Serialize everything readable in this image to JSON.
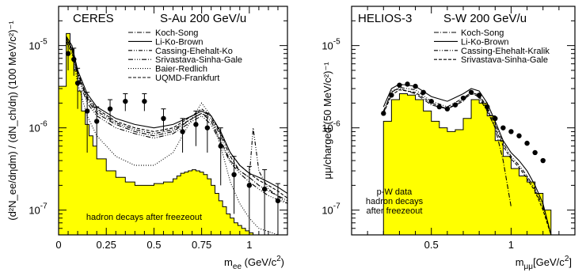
{
  "chart_data": [
    {
      "type": "line",
      "title": "CERES",
      "subtitle": "S-Au 200 GeV/u",
      "xlabel": {
        "main": "m",
        "sub": "ee",
        "rest": " (GeV/c",
        "sup": "2",
        "end": ")"
      },
      "ylabel": "(d²N_ee/dηdm) / (dN_ch/dη) (100 MeV/c²)⁻¹",
      "xlim": [
        0,
        1.2
      ],
      "ylim": [
        5e-08,
        3e-05
      ],
      "yscale": "log",
      "xticks": [
        0,
        0.25,
        0.5,
        0.75,
        1
      ],
      "xticklabels": [
        "0",
        "0.25",
        "0.5",
        "0.75",
        "1"
      ],
      "yticklabels": [
        {
          "base": "10",
          "exp": "-7",
          "value": 1e-07
        },
        {
          "base": "10",
          "exp": "-6",
          "value": 1e-06
        },
        {
          "base": "10",
          "exp": "-5",
          "value": 1e-05
        }
      ],
      "legend": [
        {
          "name": "Koch-Song",
          "dash": "6,2,1,2"
        },
        {
          "name": "Li-Ko-Brown",
          "dash": ""
        },
        {
          "name": "Cassing-Ehehalt-Ko",
          "dash": "5,2,1,2,1,2"
        },
        {
          "name": "Srivastava-Sinha-Gale",
          "dash": "6,2,1,2,1,2,1,2"
        },
        {
          "name": "Baier-Redlich",
          "dash": "1,2"
        },
        {
          "name": "UQMD-Frankfurt",
          "dash": "4,2"
        }
      ],
      "annotation": "hadron decays after freezeout",
      "fill_color": "#ffff00",
      "hadron_histogram": {
        "edges": [
          0,
          0.04,
          0.06,
          0.08,
          0.1,
          0.12,
          0.14,
          0.16,
          0.18,
          0.2,
          0.25,
          0.3,
          0.35,
          0.4,
          0.45,
          0.5,
          0.55,
          0.6,
          0.62,
          0.64,
          0.66,
          0.68,
          0.7,
          0.72,
          0.74,
          0.76,
          0.78,
          0.8,
          0.82,
          0.84,
          0.86,
          0.88,
          0.9,
          0.92,
          0.94,
          0.96,
          0.98,
          1.0,
          1.02,
          1.04,
          1.2
        ],
        "values": [
          3.2e-06,
          1.4e-05,
          9e-06,
          5e-06,
          2.8e-06,
          1.6e-06,
          1.1e-06,
          8e-07,
          6e-07,
          4.2e-07,
          3e-07,
          2.5e-07,
          2.2e-07,
          2e-07,
          2e-07,
          2.1e-07,
          2.2e-07,
          2.4e-07,
          2.6e-07,
          2.8e-07,
          2.9e-07,
          3e-07,
          3.1e-07,
          3e-07,
          2.9e-07,
          2.7e-07,
          2.4e-07,
          2e-07,
          1.6e-07,
          1.3e-07,
          1.1e-07,
          9e-08,
          8e-08,
          7e-08,
          6.5e-08,
          6e-08,
          5.6e-08,
          5.3e-08,
          5e-08,
          5e-08
        ]
      },
      "data_points": {
        "x": [
          0.05,
          0.08,
          0.1,
          0.15,
          0.2,
          0.27,
          0.35,
          0.45,
          0.55,
          0.65,
          0.72,
          0.78,
          0.85,
          0.92,
          1.0,
          1.08,
          1.15
        ],
        "y": [
          8e-06,
          6.8e-06,
          3.5e-06,
          1.6e-06,
          1.2e-06,
          1.7e-06,
          2.1e-06,
          2.1e-06,
          1.3e-06,
          9e-07,
          1.1e-06,
          1e-06,
          6e-07,
          2.7e-07,
          2e-07,
          1.8e-07,
          1.3e-07
        ],
        "yerr_low": [
          3e-06,
          2.5e-06,
          1.8e-06,
          1.1e-06,
          6e-07,
          5e-07,
          5e-07,
          5e-07,
          4e-07,
          4e-07,
          5e-07,
          5e-07,
          4e-07,
          1.8e-07,
          1.4e-07,
          1.3e-07,
          8e-08
        ],
        "yerr_high": [
          3e-06,
          2.5e-06,
          1.8e-06,
          1.1e-06,
          6e-07,
          5e-07,
          5e-07,
          5e-07,
          4e-07,
          4e-07,
          5e-07,
          5e-07,
          4e-07,
          1.8e-07,
          1.4e-07,
          1.3e-07,
          8e-08
        ]
      },
      "series": [
        {
          "name": "Koch-Song",
          "x": [
            0.04,
            0.07,
            0.1,
            0.15,
            0.2,
            0.3,
            0.4,
            0.5,
            0.6,
            0.7,
            0.75,
            0.8,
            0.85,
            0.9,
            0.95,
            1.0,
            1.05,
            1.1,
            1.15,
            1.2
          ],
          "y": [
            1.2e-05,
            9e-06,
            4.5e-06,
            2.2e-06,
            1.5e-06,
            1.1e-06,
            9e-07,
            8e-07,
            9e-07,
            1.3e-06,
            1.5e-06,
            1.2e-06,
            7e-07,
            4e-07,
            3e-07,
            2.5e-07,
            2e-07,
            1.7e-07,
            1.5e-07,
            1.3e-07
          ]
        },
        {
          "name": "Li-Ko-Brown",
          "x": [
            0.04,
            0.07,
            0.1,
            0.15,
            0.2,
            0.3,
            0.4,
            0.5,
            0.6,
            0.7,
            0.75,
            0.8,
            0.85,
            0.9,
            0.95,
            1.0,
            1.05,
            1.1,
            1.15,
            1.2
          ],
          "y": [
            1.3e-05,
            1e-05,
            5e-06,
            2.6e-06,
            1.8e-06,
            1.3e-06,
            1.1e-06,
            1e-06,
            1.1e-06,
            1.4e-06,
            1.6e-06,
            1.4e-06,
            9e-07,
            5e-07,
            3.5e-07,
            2.8e-07,
            2.5e-07,
            2.2e-07,
            1.9e-07,
            1.6e-07
          ]
        },
        {
          "name": "Cassing-Ehehalt-Ko",
          "x": [
            0.04,
            0.07,
            0.1,
            0.15,
            0.2,
            0.3,
            0.4,
            0.5,
            0.6,
            0.7,
            0.75,
            0.8,
            0.85,
            0.9,
            0.95,
            1.0,
            1.02,
            1.05,
            1.1,
            1.2
          ],
          "y": [
            1.2e-05,
            9.5e-06,
            4.8e-06,
            2.3e-06,
            1.6e-06,
            1.15e-06,
            9.5e-07,
            8.5e-07,
            9.5e-07,
            1.3e-06,
            1.5e-06,
            1.3e-06,
            8e-07,
            4.5e-07,
            3e-07,
            2.5e-07,
            1e-06,
            3e-07,
            1.8e-07,
            1.2e-07
          ]
        },
        {
          "name": "Srivastava-Sinha-Gale",
          "x": [
            0.04,
            0.07,
            0.1,
            0.15,
            0.2,
            0.3,
            0.4,
            0.5,
            0.6,
            0.7,
            0.75,
            0.8,
            0.85,
            0.9,
            0.95,
            1.0,
            1.05,
            1.1,
            1.2
          ],
          "y": [
            1.1e-05,
            8.5e-06,
            4.2e-06,
            2e-06,
            1.4e-06,
            1e-06,
            8.5e-07,
            7.5e-07,
            8.5e-07,
            1.2e-06,
            1.4e-06,
            1.1e-06,
            6.5e-07,
            3.8e-07,
            2.8e-07,
            2.2e-07,
            1.8e-07,
            1.5e-07,
            1.2e-07
          ]
        },
        {
          "name": "Baier-Redlich",
          "x": [
            0.04,
            0.07,
            0.1,
            0.15,
            0.2,
            0.3,
            0.4,
            0.5,
            0.6,
            0.7,
            0.75,
            0.8,
            0.85,
            0.9,
            0.95,
            1.0,
            1.05,
            1.1,
            1.15
          ],
          "y": [
            1.1e-05,
            8e-06,
            3.5e-06,
            1.4e-06,
            8e-07,
            4.5e-07,
            3.5e-07,
            3.5e-07,
            5e-07,
            1.3e-06,
            2e-06,
            1.4e-06,
            6e-07,
            2.2e-07,
            1.2e-07,
            8e-08,
            6e-08,
            5.5e-08,
            5e-08
          ]
        },
        {
          "name": "UQMD-Frankfurt",
          "x": [
            0.04,
            0.07,
            0.1,
            0.15,
            0.2,
            0.3,
            0.4,
            0.5,
            0.6,
            0.7,
            0.75,
            0.8,
            0.85,
            0.9,
            0.95,
            1.0,
            1.05,
            1.1,
            1.15,
            1.2
          ],
          "y": [
            1.25e-05,
            9e-06,
            4.5e-06,
            2.4e-06,
            1.7e-06,
            1.2e-06,
            1e-06,
            9e-07,
            1e-06,
            1.4e-06,
            1.7e-06,
            1.4e-06,
            8.5e-07,
            5e-07,
            3.5e-07,
            2.8e-07,
            2.3e-07,
            2e-07,
            1.7e-07,
            1.4e-07
          ]
        }
      ]
    },
    {
      "type": "line",
      "title": "HELIOS-3",
      "subtitle": "S-W 200 GeV/u",
      "xlabel": {
        "main": "m",
        "sub": "μμ",
        "rest": "[GeV/c",
        "sup": "2",
        "end": "]"
      },
      "ylabel": "μμ/charged (50 MeV/c²)⁻¹",
      "xlim": [
        0,
        1.4
      ],
      "ylim": [
        5e-08,
        3e-05
      ],
      "yscale": "log",
      "xticks": [
        0.5,
        1
      ],
      "xticklabels": [
        "0.5",
        "1"
      ],
      "yticklabels": [
        {
          "base": "10",
          "exp": "-7",
          "value": 1e-07
        },
        {
          "base": "10",
          "exp": "-6",
          "value": 1e-06
        },
        {
          "base": "10",
          "exp": "-5",
          "value": 1e-05
        }
      ],
      "legend": [
        {
          "name": "Koch-Song",
          "dash": "6,2,1,2"
        },
        {
          "name": "Li-Ko-Brown",
          "dash": ""
        },
        {
          "name": "Cassing-Ehehalt-Kralik",
          "dash": "5,2,1,2,1,2"
        },
        {
          "name": "Srivastava-Sinha-Gale",
          "dash": "4,2"
        }
      ],
      "annotation": [
        "p-W data",
        "hadron decays",
        "after freezeout"
      ],
      "fill_color": "#ffff00",
      "hadron_histogram": {
        "edges": [
          0.2,
          0.25,
          0.3,
          0.35,
          0.4,
          0.45,
          0.5,
          0.55,
          0.6,
          0.65,
          0.7,
          0.75,
          0.8,
          0.85,
          0.9,
          0.95,
          1.0,
          1.05,
          1.1,
          1.15,
          1.2,
          1.25
        ],
        "values": [
          1.2e-06,
          2.2e-06,
          2.6e-06,
          2.5e-06,
          2.2e-06,
          1.6e-06,
          1.2e-06,
          1e-06,
          9e-07,
          9.5e-07,
          1.3e-06,
          2.2e-06,
          2e-06,
          1.4e-06,
          7e-07,
          4.5e-07,
          3.2e-07,
          2.6e-07,
          2.2e-07,
          1.6e-07,
          1e-07
        ]
      },
      "data_points": {
        "x": [
          0.2,
          0.25,
          0.3,
          0.35,
          0.4,
          0.45,
          0.5,
          0.55,
          0.6,
          0.65,
          0.7,
          0.75,
          0.8,
          0.85,
          0.9,
          0.95,
          1.0,
          1.05,
          1.1,
          1.15,
          1.2
        ],
        "y": [
          1.5e-06,
          2.5e-06,
          3.3e-06,
          3.4e-06,
          3.2e-06,
          2.7e-06,
          2.1e-06,
          1.8e-06,
          1.7e-06,
          1.9e-06,
          2.3e-06,
          2.7e-06,
          2.5e-06,
          1.8e-06,
          1.3e-06,
          1e-06,
          9e-07,
          8e-07,
          6.5e-07,
          5e-07,
          4e-07
        ]
      },
      "series": [
        {
          "name": "Koch-Song",
          "x": [
            0.2,
            0.25,
            0.3,
            0.4,
            0.5,
            0.6,
            0.7,
            0.75,
            0.8,
            0.85,
            0.9,
            0.95,
            1.0
          ],
          "y": [
            1.5e-06,
            2.8e-06,
            3e-06,
            2.6e-06,
            1.9e-06,
            1.7e-06,
            2.1e-06,
            2.8e-06,
            2.3e-06,
            1.6e-06,
            1e-06,
            4e-07,
            1.1e-07
          ]
        },
        {
          "name": "Li-Ko-Brown",
          "x": [
            0.2,
            0.25,
            0.3,
            0.4,
            0.5,
            0.6,
            0.7,
            0.75,
            0.8,
            0.85,
            0.9,
            0.95,
            1.0,
            1.05,
            1.1,
            1.15,
            1.2,
            1.25
          ],
          "y": [
            1.8e-06,
            3e-06,
            3.4e-06,
            3.2e-06,
            2.4e-06,
            2.1e-06,
            2.6e-06,
            3e-06,
            2.8e-06,
            2e-06,
            1.2e-06,
            7e-07,
            5e-07,
            4e-07,
            3e-07,
            2e-07,
            1.2e-07,
            5e-08
          ]
        },
        {
          "name": "Cassing-Ehehalt-Kralik",
          "x": [
            0.2,
            0.25,
            0.3,
            0.4,
            0.5,
            0.6,
            0.7,
            0.75,
            0.8,
            0.85,
            0.9,
            0.95,
            1.0,
            1.05,
            1.1,
            1.15,
            1.2,
            1.25
          ],
          "y": [
            1.6e-06,
            2.7e-06,
            3.1e-06,
            2.9e-06,
            2.1e-06,
            1.8e-06,
            2.3e-06,
            2.7e-06,
            2.5e-06,
            1.8e-06,
            1.1e-06,
            6.5e-07,
            4.5e-07,
            3.5e-07,
            2.6e-07,
            1.8e-07,
            1.1e-07,
            5e-08
          ]
        },
        {
          "name": "Srivastava-Sinha-Gale",
          "x": [
            0.2,
            0.25,
            0.3,
            0.4,
            0.5,
            0.6,
            0.7,
            0.75,
            0.8,
            0.85,
            0.9,
            0.95,
            1.0,
            1.05,
            1.1,
            1.15,
            1.2,
            1.25
          ],
          "y": [
            1.5e-06,
            2.5e-06,
            2.9e-06,
            2.7e-06,
            2e-06,
            1.7e-06,
            2.2e-06,
            2.6e-06,
            2.4e-06,
            1.7e-06,
            1e-06,
            6e-07,
            4.2e-07,
            3.3e-07,
            2.4e-07,
            1.7e-07,
            1e-07,
            5e-08
          ]
        }
      ]
    }
  ]
}
